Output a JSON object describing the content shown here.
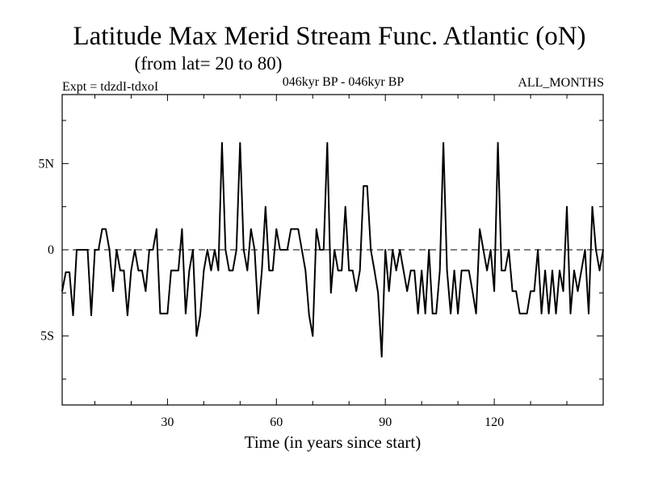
{
  "chart_data": {
    "type": "line",
    "title": "Latitude Max Merid Stream Func. Atlantic (oN)",
    "subtitle": "(from lat= 20 to 80)",
    "experiment_label": "Expt = tdzdI-tdxoI",
    "period_label": "046kyr BP - 046kyr BP",
    "months_label": "ALL_MONTHS",
    "xlabel": "Time (in years since start)",
    "ylabel": "",
    "xlim": [
      1,
      150
    ],
    "ylim": [
      -9,
      9
    ],
    "x_ticks": [
      30,
      60,
      90,
      120
    ],
    "x_tick_labels": [
      "30",
      "60",
      "90",
      "120"
    ],
    "y_ticks": [
      5,
      0,
      -5
    ],
    "y_tick_labels": [
      "5N",
      "0",
      "5S"
    ],
    "reference_line": 0,
    "series": [
      {
        "name": "Latitude Max Merid Stream Func.",
        "x": [
          1,
          2,
          3,
          4,
          5,
          6,
          7,
          8,
          9,
          10,
          11,
          12,
          13,
          14,
          15,
          16,
          17,
          18,
          19,
          20,
          21,
          22,
          23,
          24,
          25,
          26,
          27,
          28,
          29,
          30,
          31,
          32,
          33,
          34,
          35,
          36,
          37,
          38,
          39,
          40,
          41,
          42,
          43,
          44,
          45,
          46,
          47,
          48,
          49,
          50,
          51,
          52,
          53,
          54,
          55,
          56,
          57,
          58,
          59,
          60,
          61,
          62,
          63,
          64,
          65,
          66,
          67,
          68,
          69,
          70,
          71,
          72,
          73,
          74,
          75,
          76,
          77,
          78,
          79,
          80,
          81,
          82,
          83,
          84,
          85,
          86,
          87,
          88,
          89,
          90,
          91,
          92,
          93,
          94,
          95,
          96,
          97,
          98,
          99,
          100,
          101,
          102,
          103,
          104,
          105,
          106,
          107,
          108,
          109,
          110,
          111,
          112,
          113,
          114,
          115,
          116,
          117,
          118,
          119,
          120,
          121,
          122,
          123,
          124,
          125,
          126,
          127,
          128,
          129,
          130,
          131,
          132,
          133,
          134,
          135,
          136,
          137,
          138,
          139,
          140,
          141,
          142,
          143,
          144,
          145,
          146,
          147,
          148,
          149,
          150
        ],
        "values": [
          -2.4,
          -1.3,
          -1.3,
          -3.8,
          0,
          0,
          0,
          0,
          -3.8,
          0,
          0,
          1.2,
          1.2,
          0,
          -2.4,
          0,
          -1.2,
          -1.2,
          -3.8,
          -1.2,
          0,
          -1.2,
          -1.2,
          -2.4,
          0,
          0,
          1.2,
          -3.7,
          -3.7,
          -3.7,
          -1.2,
          -1.2,
          -1.2,
          1.2,
          -3.7,
          -1.2,
          0,
          -5,
          -3.8,
          -1.2,
          0,
          -1.2,
          0,
          -1.2,
          6.2,
          0,
          -1.2,
          -1.2,
          0,
          6.2,
          0,
          -1.2,
          1.2,
          0,
          -3.7,
          -1.2,
          2.5,
          -1.2,
          -1.2,
          1.2,
          0,
          0,
          0,
          1.2,
          1.2,
          1.2,
          0,
          -1.2,
          -3.8,
          -5,
          1.2,
          0,
          0,
          6.2,
          -2.5,
          0,
          -1.2,
          -1.2,
          2.5,
          -1.2,
          -1.2,
          -2.4,
          -1.2,
          3.7,
          3.7,
          0,
          -1.2,
          -2.5,
          -6.2,
          0,
          -2.4,
          0,
          -1.2,
          0,
          -1.2,
          -2.4,
          -1.2,
          -1.2,
          -3.7,
          -1.2,
          -3.7,
          0,
          -3.7,
          -3.7,
          -1.2,
          6.2,
          -1.2,
          -3.7,
          -1.2,
          -3.7,
          -1.2,
          -1.2,
          -1.2,
          -2.4,
          -3.7,
          1.2,
          0,
          -1.2,
          0,
          -2.4,
          6.2,
          -1.2,
          -1.2,
          0,
          -2.4,
          -2.4,
          -3.7,
          -3.7,
          -3.7,
          -2.4,
          -2.4,
          0,
          -3.7,
          -1.2,
          -3.7,
          -1.2,
          -3.7,
          -1.2,
          -2.4,
          2.5,
          -3.7,
          -1.2,
          -2.4,
          -1.2,
          0,
          -3.7,
          2.5,
          0,
          -1.2,
          0
        ]
      }
    ]
  }
}
